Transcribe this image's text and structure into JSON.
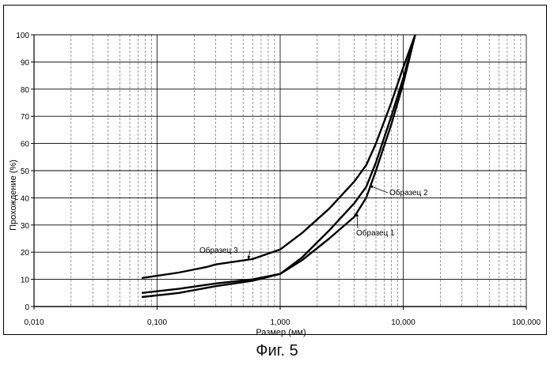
{
  "caption": "Фиг. 5",
  "chart_data": {
    "type": "line",
    "xlabel": "Размер (мм)",
    "ylabel": "Прохождение (%)",
    "xscale": "log",
    "xlim": [
      0.01,
      100
    ],
    "ylim": [
      0,
      100
    ],
    "grid": true,
    "x_tick_labels": [
      "0,010",
      "0,100",
      "1,000",
      "10,000",
      "100,000"
    ],
    "y_tick_labels": [
      "0",
      "10",
      "20",
      "30",
      "40",
      "50",
      "60",
      "70",
      "80",
      "90",
      "100"
    ],
    "series": [
      {
        "name": "Образец 1",
        "x": [
          0.075,
          0.15,
          0.3,
          0.6,
          1.0,
          1.5,
          2.5,
          4.0,
          5.0,
          6.0,
          8.0,
          10.0,
          12.5
        ],
        "y": [
          3.5,
          5,
          7.5,
          9.5,
          12,
          17,
          25,
          33,
          40,
          50,
          67,
          82,
          100
        ]
      },
      {
        "name": "Образец 2",
        "x": [
          0.075,
          0.15,
          0.3,
          0.6,
          1.0,
          1.5,
          2.5,
          4.0,
          5.0,
          6.0,
          8.0,
          10.0,
          12.5
        ],
        "y": [
          5,
          6.5,
          8.5,
          10,
          12,
          18,
          28,
          38,
          44,
          53,
          70,
          84,
          100
        ]
      },
      {
        "name": "Образец 3",
        "x": [
          0.075,
          0.15,
          0.25,
          0.3,
          0.6,
          1.0,
          1.5,
          2.5,
          4.0,
          5.0,
          6.0,
          8.0,
          10.0,
          12.5
        ],
        "y": [
          10.5,
          12.5,
          14.5,
          15.5,
          17.5,
          21,
          27,
          36,
          46,
          52,
          60,
          75,
          88,
          100
        ]
      }
    ]
  }
}
